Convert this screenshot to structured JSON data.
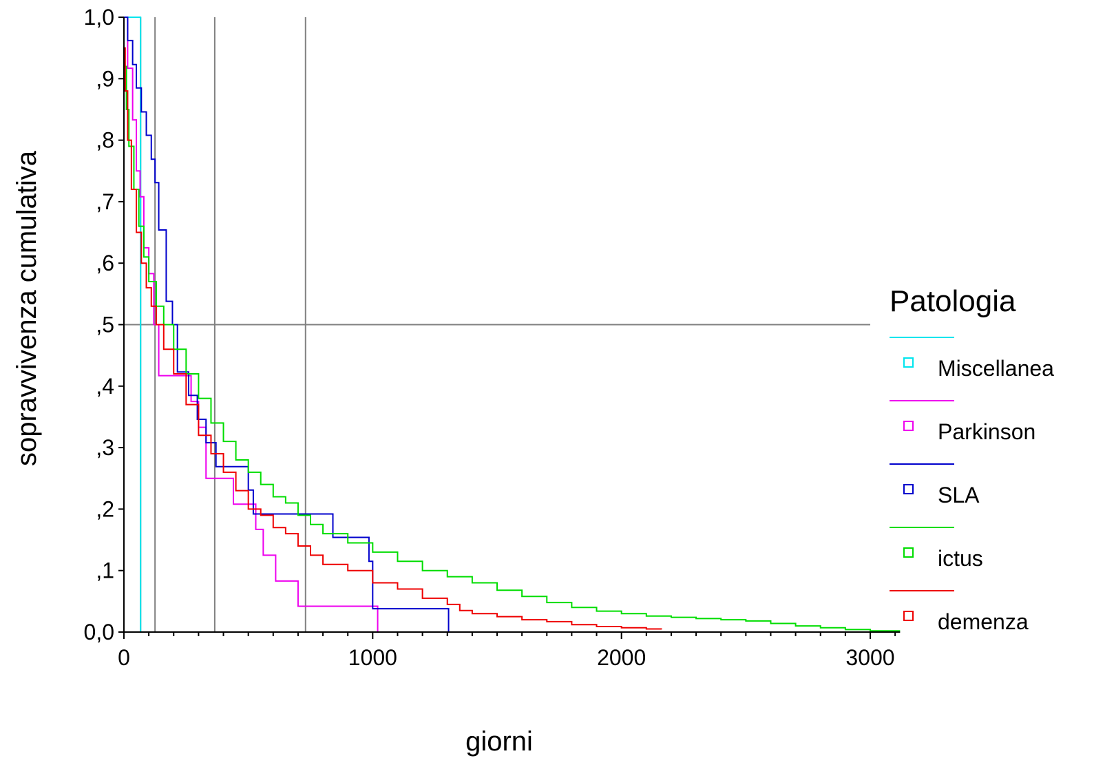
{
  "chart_data": {
    "type": "line",
    "step": true,
    "xlabel": "giorni",
    "ylabel": "sopravvivenza cumulativa",
    "xlim": [
      0,
      3000
    ],
    "ylim": [
      0,
      1
    ],
    "xticks": [
      0,
      1000,
      2000,
      3000
    ],
    "xtick_labels": [
      "0",
      "1000",
      "2000",
      "3000"
    ],
    "yticks": [
      0,
      0.1,
      0.2,
      0.3,
      0.4,
      0.5,
      0.6,
      0.7,
      0.8,
      0.9,
      1.0
    ],
    "ytick_labels": [
      "0,0",
      ",1",
      ",2",
      ",3",
      ",4",
      ",5",
      ",6",
      ",7",
      ",8",
      ",9",
      "1,0"
    ],
    "reference_lines": {
      "horizontal": [
        0.5
      ],
      "vertical": [
        67,
        125,
        365,
        730
      ]
    },
    "legend": {
      "title": "Patologia",
      "position": "right"
    },
    "series": [
      {
        "name": "Miscellanea",
        "color": "#00e5ee",
        "x": [
          0,
          67,
          67
        ],
        "y": [
          1.0,
          1.0,
          0.0
        ]
      },
      {
        "name": "Parkinson",
        "color": "#ee00ee",
        "x": [
          0,
          15,
          35,
          50,
          65,
          80,
          100,
          120,
          140,
          200,
          270,
          300,
          330,
          390,
          440,
          490,
          530,
          560,
          610,
          700,
          1020
        ],
        "y": [
          1.0,
          0.917,
          0.833,
          0.75,
          0.708,
          0.625,
          0.583,
          0.5,
          0.417,
          0.417,
          0.375,
          0.333,
          0.25,
          0.25,
          0.208,
          0.208,
          0.167,
          0.125,
          0.083,
          0.042,
          0.0
        ]
      },
      {
        "name": "SLA",
        "color": "#0000cc",
        "x": [
          0,
          15,
          35,
          50,
          70,
          90,
          110,
          125,
          140,
          170,
          195,
          215,
          260,
          295,
          330,
          370,
          460,
          500,
          520,
          660,
          760,
          840,
          960,
          985,
          1000,
          1305
        ],
        "y": [
          1.0,
          0.962,
          0.923,
          0.885,
          0.846,
          0.808,
          0.769,
          0.731,
          0.654,
          0.538,
          0.5,
          0.423,
          0.385,
          0.346,
          0.308,
          0.269,
          0.269,
          0.231,
          0.192,
          0.192,
          0.192,
          0.154,
          0.154,
          0.115,
          0.038,
          0.0
        ]
      },
      {
        "name": "ictus",
        "color": "#00dd00",
        "x": [
          0,
          10,
          20,
          40,
          60,
          80,
          100,
          130,
          160,
          200,
          250,
          300,
          350,
          400,
          450,
          500,
          550,
          600,
          650,
          700,
          750,
          800,
          900,
          1000,
          1100,
          1200,
          1300,
          1400,
          1500,
          1600,
          1700,
          1800,
          1900,
          2000,
          2100,
          2200,
          2300,
          2400,
          2500,
          2600,
          2700,
          2800,
          2900,
          3000,
          3120
        ],
        "y": [
          0.92,
          0.85,
          0.79,
          0.72,
          0.66,
          0.61,
          0.57,
          0.53,
          0.5,
          0.46,
          0.42,
          0.38,
          0.34,
          0.31,
          0.28,
          0.26,
          0.24,
          0.22,
          0.21,
          0.19,
          0.175,
          0.16,
          0.145,
          0.13,
          0.115,
          0.1,
          0.09,
          0.08,
          0.068,
          0.058,
          0.048,
          0.04,
          0.034,
          0.03,
          0.026,
          0.024,
          0.022,
          0.02,
          0.018,
          0.014,
          0.01,
          0.007,
          0.004,
          0.002,
          0.002
        ]
      },
      {
        "name": "demenza",
        "color": "#ee0000",
        "x": [
          0,
          5,
          15,
          30,
          50,
          70,
          90,
          110,
          130,
          160,
          200,
          250,
          300,
          350,
          400,
          450,
          500,
          550,
          600,
          650,
          700,
          750,
          800,
          900,
          1000,
          1100,
          1200,
          1300,
          1350,
          1400,
          1500,
          1600,
          1700,
          1800,
          1900,
          2000,
          2100,
          2160
        ],
        "y": [
          0.95,
          0.88,
          0.8,
          0.72,
          0.65,
          0.6,
          0.56,
          0.53,
          0.5,
          0.46,
          0.42,
          0.37,
          0.32,
          0.29,
          0.26,
          0.23,
          0.2,
          0.19,
          0.17,
          0.16,
          0.14,
          0.125,
          0.11,
          0.1,
          0.08,
          0.07,
          0.055,
          0.045,
          0.035,
          0.03,
          0.025,
          0.02,
          0.017,
          0.012,
          0.009,
          0.007,
          0.005,
          0.004
        ]
      }
    ]
  }
}
